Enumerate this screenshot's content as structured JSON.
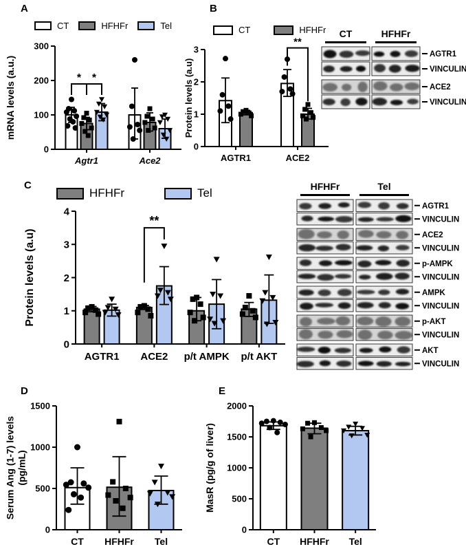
{
  "panels": {
    "A": {
      "label": "A"
    },
    "B": {
      "label": "B"
    },
    "C": {
      "label": "C"
    },
    "D": {
      "label": "D"
    },
    "E": {
      "label": "E"
    }
  },
  "colors": {
    "ct": "#ffffff",
    "hfhfr": "#7f7f7f",
    "tel": "#b3c8f0",
    "axis": "#000000"
  },
  "chart_data": [
    {
      "panel": "A",
      "type": "bar",
      "subtype": "grouped-bar-with-scatter",
      "ylabel": "mRNA levels (a.u.)",
      "ylim": [
        0,
        300
      ],
      "yticks": [
        0,
        100,
        200,
        300
      ],
      "categories": [
        "Agtr1",
        "Ace2"
      ],
      "category_style": "bold-italic",
      "legend": [
        {
          "name": "CT",
          "color": "#ffffff"
        },
        {
          "name": "HFHFr",
          "color": "#7f7f7f"
        },
        {
          "name": "Tel",
          "color": "#b3c8f0"
        }
      ],
      "series": [
        {
          "name": "CT",
          "fill": "#ffffff",
          "marker": "circle",
          "values": [
            100,
            100
          ],
          "err_up": [
            22,
            78
          ],
          "err_down": [
            22,
            70
          ],
          "points": [
            [
              145,
              118,
              112,
              108,
              96,
              88,
              80,
              68,
              62
            ],
            [
              260,
              125,
              72,
              65,
              55,
              30
            ]
          ]
        },
        {
          "name": "HFHFr",
          "fill": "#7f7f7f",
          "marker": "square",
          "values": [
            75,
            78
          ],
          "err_up": [
            18,
            28
          ],
          "err_down": [
            18,
            25
          ],
          "points": [
            [
              105,
              92,
              85,
              75,
              62,
              52,
              40
            ],
            [
              118,
              96,
              88,
              78,
              62,
              55
            ]
          ]
        },
        {
          "name": "Tel",
          "fill": "#b3c8f0",
          "marker": "triangle-down",
          "values": [
            108,
            60
          ],
          "err_up": [
            25,
            28
          ],
          "err_down": [
            25,
            28
          ],
          "points": [
            [
              145,
              132,
              124,
              108,
              100,
              94,
              86
            ],
            [
              100,
              95,
              88,
              78,
              55,
              42,
              30
            ]
          ]
        }
      ],
      "significance": [
        {
          "label": "*",
          "from": [
            0,
            0
          ],
          "to": [
            0,
            1
          ],
          "y_top": 190,
          "leg1": 158,
          "leg2": 158
        },
        {
          "label": "*",
          "from": [
            0,
            1
          ],
          "to": [
            0,
            2
          ],
          "y_top": 190,
          "leg1": 158,
          "leg2": 158
        }
      ]
    },
    {
      "panel": "B",
      "type": "bar",
      "subtype": "grouped-bar-with-scatter",
      "ylabel": "Protein levels (a.u)",
      "ylim": [
        0,
        3
      ],
      "yticks": [
        0,
        1,
        2,
        3
      ],
      "categories": [
        "AGTR1",
        "ACE2"
      ],
      "category_style": "bold",
      "legend": [
        {
          "name": "CT",
          "color": "#ffffff"
        },
        {
          "name": "HFHFr",
          "color": "#7f7f7f"
        }
      ],
      "series": [
        {
          "name": "CT",
          "fill": "#ffffff",
          "marker": "circle",
          "values": [
            1.42,
            1.95
          ],
          "err_up": [
            0.7,
            0.43
          ],
          "err_down": [
            0.68,
            0.4
          ],
          "points": [
            [
              2.72,
              1.6,
              1.25,
              1.1,
              0.85
            ],
            [
              2.7,
              2.15,
              1.78,
              1.7,
              1.63
            ]
          ]
        },
        {
          "name": "HFHFr",
          "fill": "#7f7f7f",
          "marker": "square",
          "values": [
            1.05,
            1.0
          ],
          "err_up": [
            0.07,
            0.18
          ],
          "err_down": [
            0.07,
            0.15
          ],
          "points": [
            [
              1.12,
              1.08,
              1.04,
              1.0,
              0.95
            ],
            [
              1.3,
              1.15,
              1.05,
              0.95,
              0.9,
              0.85
            ]
          ]
        }
      ],
      "significance": [
        {
          "label": "**",
          "from": [
            1,
            0
          ],
          "to": [
            1,
            1
          ],
          "y_top": 3.05,
          "leg1": 2.5,
          "leg2": 1.4
        }
      ]
    },
    {
      "panel": "C",
      "type": "bar",
      "subtype": "grouped-bar-with-scatter",
      "ylabel": "Protein levels (a.u)",
      "ylim": [
        0,
        4
      ],
      "yticks": [
        0,
        1,
        2,
        3,
        4
      ],
      "categories": [
        "AGTR1",
        "ACE2",
        "p/t AMPK",
        "p/t AKT"
      ],
      "category_style": "bold",
      "legend": [
        {
          "name": "HFHFr",
          "color": "#7f7f7f"
        },
        {
          "name": "Tel",
          "color": "#b3c8f0"
        }
      ],
      "series": [
        {
          "name": "HFHFr",
          "fill": "#7f7f7f",
          "marker": "square",
          "values": [
            1.05,
            1.1,
            1.0,
            1.05
          ],
          "err_up": [
            0.08,
            0.06,
            0.4,
            0.2
          ],
          "err_down": [
            0.08,
            0.06,
            0.3,
            0.22
          ],
          "points": [
            [
              1.12,
              1.08,
              1.02,
              0.95,
              0.9
            ],
            [
              1.15,
              1.12,
              1.05,
              0.95,
              0.85
            ],
            [
              1.4,
              1.35,
              1.2,
              0.95,
              0.8,
              0.7
            ],
            [
              1.45,
              1.1,
              1.0,
              0.9,
              0.8
            ]
          ]
        },
        {
          "name": "Tel",
          "fill": "#b3c8f0",
          "marker": "triangle-down",
          "values": [
            1.02,
            1.75,
            1.2,
            1.32
          ],
          "err_up": [
            0.18,
            0.58,
            0.74,
            0.76
          ],
          "err_down": [
            0.18,
            0.56,
            0.74,
            0.7
          ],
          "points": [
            [
              1.35,
              1.1,
              1.05,
              0.95,
              0.88
            ],
            [
              2.95,
              1.62,
              1.55,
              1.45,
              1.35
            ],
            [
              2.55,
              1.5,
              1.45,
              0.75,
              0.7,
              0.62
            ],
            [
              2.62,
              1.55,
              1.4,
              1.3,
              0.65,
              0.6
            ]
          ]
        }
      ],
      "significance": [
        {
          "label": "**",
          "from": [
            1,
            0
          ],
          "to": [
            1,
            1
          ],
          "y_top": 3.5,
          "leg1": 1.85,
          "leg2": 3.15
        }
      ]
    },
    {
      "panel": "D",
      "type": "bar",
      "subtype": "bar-with-scatter",
      "ylabel": [
        "Serum Ang (1-7) levels",
        "(pg/mL)"
      ],
      "ylim": [
        0,
        1500
      ],
      "yticks": [
        0,
        500,
        1000,
        1500
      ],
      "categories": [
        "CT",
        "HFHFr",
        "Tel"
      ],
      "category_style": "bold",
      "bars": [
        {
          "name": "CT",
          "fill": "#ffffff",
          "marker": "circle",
          "value": 510,
          "err_up": 240,
          "err_down": 200,
          "points": [
            1000,
            575,
            560,
            545,
            510,
            430,
            390,
            240
          ]
        },
        {
          "name": "HFHFr",
          "fill": "#7f7f7f",
          "marker": "square",
          "value": 515,
          "err_up": 370,
          "err_down": 350,
          "points": [
            1310,
            580,
            500,
            420,
            390,
            350,
            260
          ]
        },
        {
          "name": "Tel",
          "fill": "#b3c8f0",
          "marker": "triangle-down",
          "value": 475,
          "err_up": 175,
          "err_down": 165,
          "points": [
            770,
            575,
            450,
            440,
            400,
            310
          ]
        }
      ]
    },
    {
      "panel": "E",
      "type": "bar",
      "subtype": "bar-with-scatter",
      "ylabel": "MasR (pg/g of liver)",
      "ylim": [
        0,
        2000
      ],
      "yticks": [
        0,
        500,
        1000,
        1500,
        2000
      ],
      "categories": [
        "CT",
        "HFHFr",
        "Tel"
      ],
      "category_style": "bold",
      "bars": [
        {
          "name": "CT",
          "fill": "#ffffff",
          "marker": "circle",
          "value": 1680,
          "err_up": 60,
          "err_down": 60,
          "points": [
            1760,
            1750,
            1735,
            1720,
            1700,
            1650,
            1570
          ]
        },
        {
          "name": "HFHFr",
          "fill": "#7f7f7f",
          "marker": "square",
          "value": 1640,
          "err_up": 80,
          "err_down": 90,
          "points": [
            1730,
            1720,
            1650,
            1630,
            1600,
            1500
          ]
        },
        {
          "name": "Tel",
          "fill": "#b3c8f0",
          "marker": "triangle-down",
          "value": 1600,
          "err_up": 70,
          "err_down": 70,
          "points": [
            1710,
            1660,
            1640,
            1600,
            1530,
            1520
          ]
        }
      ]
    }
  ],
  "blots": {
    "B": {
      "groups": [
        "CT",
        "HFHFr"
      ],
      "lanes_per_group": 3,
      "rows": [
        "AGTR1",
        "VINCULIN",
        "ACE2",
        "VINCULIN"
      ]
    },
    "C": {
      "groups": [
        "HFHFr",
        "Tel"
      ],
      "lanes_per_group": 3,
      "rows": [
        "AGTR1",
        "VINCULIN",
        "ACE2",
        "VINCULIN",
        "p-AMPK",
        "VINCULIN",
        "AMPK",
        "VINCULIN",
        "p-AKT",
        "VINCULIN",
        "AKT",
        "VINCULIN"
      ]
    }
  }
}
